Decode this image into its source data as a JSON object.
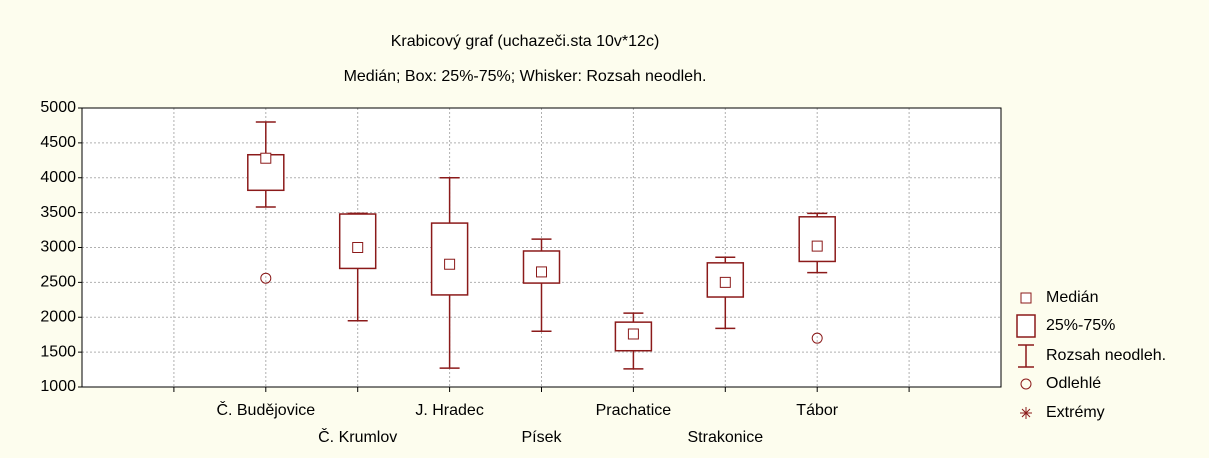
{
  "chart_data": {
    "type": "box",
    "title": "Krabicový graf (uchazeči.sta 10v*12c)",
    "subtitle": "Medián; Box: 25%-75%; Whisker: Rozsah neodleh.",
    "categories": [
      "Č. Budějovice",
      "Č. Krumlov",
      "J. Hradec",
      "Písek",
      "Prachatice",
      "Strakonice",
      "Tábor"
    ],
    "min": [
      3580,
      1950,
      1270,
      1800,
      1260,
      1840,
      2640
    ],
    "q1": [
      3820,
      2700,
      2320,
      2490,
      1520,
      2290,
      2800
    ],
    "median": [
      4280,
      3000,
      2760,
      2650,
      1760,
      2500,
      3020
    ],
    "q3": [
      4330,
      3480,
      3350,
      2950,
      1930,
      2780,
      3440
    ],
    "max": [
      4800,
      3490,
      4000,
      3120,
      2060,
      2860,
      3490
    ],
    "outliers": [
      2560,
      null,
      null,
      null,
      null,
      null,
      1700
    ],
    "color": "#8b1a1a",
    "ylim": [
      1000,
      5000
    ],
    "yticks": [
      1000,
      1500,
      2000,
      2500,
      3000,
      3500,
      4000,
      4500,
      5000
    ],
    "grid": true,
    "legend": [
      "Medián",
      "25%-75%",
      "Rozsah neodleh.",
      "Odlehlé",
      "Extrémy"
    ],
    "legend_position": "right"
  }
}
